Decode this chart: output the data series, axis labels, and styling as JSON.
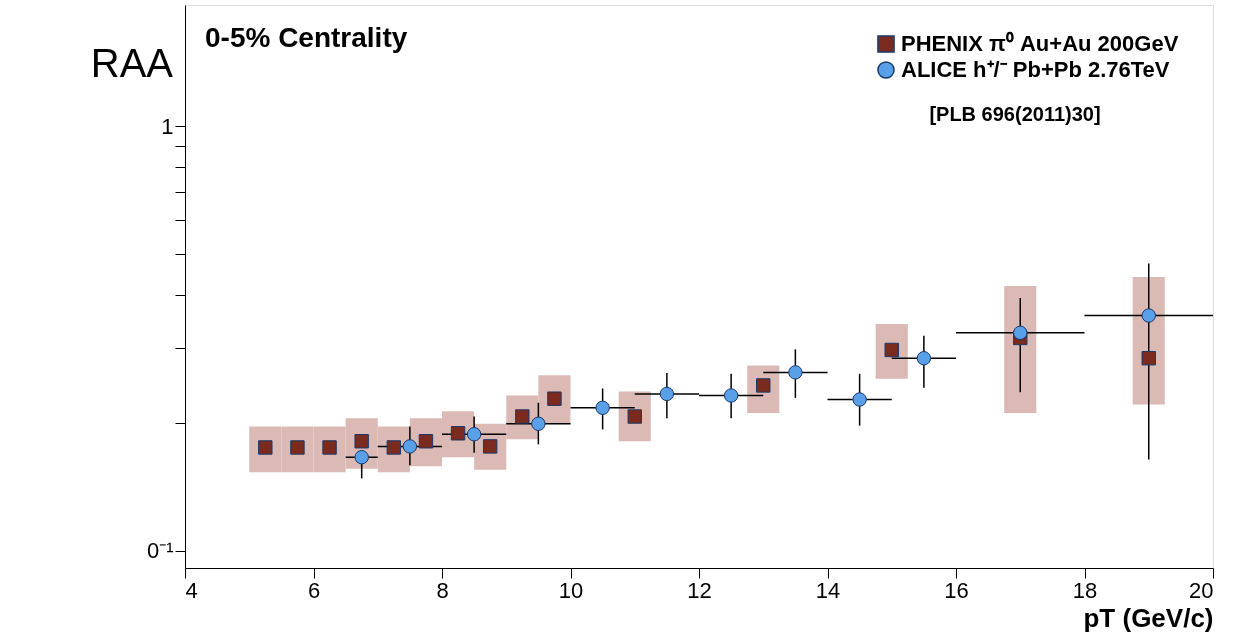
{
  "chart_data": {
    "type": "scatter",
    "title": "0-5% Centrality",
    "xlabel": "pT (GeV/c)",
    "ylabel": "RAA",
    "log": "y",
    "grid": false,
    "legend": "top right",
    "xlim": [
      4,
      20
    ],
    "xticks": [
      4,
      6,
      8,
      10,
      12,
      14,
      16,
      18,
      20
    ],
    "ylim": [
      0.091,
      1.93
    ],
    "yticks": [
      {
        "value": 0.1,
        "label": "0⁻¹"
      },
      {
        "value": 0.2,
        "label": null
      },
      {
        "value": 0.3,
        "label": null
      },
      {
        "value": 0.4,
        "label": null
      },
      {
        "value": 0.5,
        "label": null
      },
      {
        "value": 0.6,
        "label": null
      },
      {
        "value": 0.7,
        "label": null
      },
      {
        "value": 0.8,
        "label": null
      },
      {
        "value": 0.9,
        "label": null
      },
      1
    ],
    "annotations": [
      "[PLB 696(2011)30]"
    ],
    "series": [
      {
        "type": "bar",
        "color": "#dbbab5",
        "x": [
          5.25,
          5.75,
          6.25,
          6.75,
          7.25,
          7.75,
          8.25,
          8.75,
          9.25,
          9.75,
          11,
          13,
          15,
          17,
          19
        ],
        "base": [
          0.153,
          0.153,
          0.153,
          0.156,
          0.153,
          0.158,
          0.166,
          0.155,
          0.183,
          0.199,
          0.181,
          0.211,
          0.254,
          0.211,
          0.221
        ],
        "values": [
          0.043,
          0.043,
          0.043,
          0.049,
          0.043,
          0.047,
          0.047,
          0.044,
          0.049,
          0.06,
          0.056,
          0.062,
          0.088,
          0.209,
          0.22
        ]
      },
      {
        "name": "PHENIX π⁰  Au+Au 200GeV",
        "color": "#7a2a1e",
        "marker": "square",
        "x": [
          5.25,
          5.75,
          6.25,
          6.75,
          7.25,
          7.75,
          8.25,
          8.75,
          9.25,
          9.75,
          11,
          13,
          15,
          17,
          19
        ],
        "values": [
          0.175,
          0.175,
          0.175,
          0.181,
          0.175,
          0.181,
          0.189,
          0.176,
          0.207,
          0.228,
          0.207,
          0.245,
          0.297,
          0.317,
          0.284
        ]
      },
      {
        "name": "ALICE h⁺/⁻  Pb+Pb 2.76TeV",
        "color": "#5aa0e8",
        "marker": "circle",
        "x": [
          6.75,
          7.5,
          8.5,
          9.5,
          10.5,
          11.5,
          12.5,
          13.5,
          14.5,
          15.5,
          17,
          19
        ],
        "values": [
          0.166,
          0.176,
          0.188,
          0.199,
          0.217,
          0.234,
          0.232,
          0.263,
          0.227,
          0.284,
          0.326,
          0.358
        ],
        "errors": [
          [
            0.148,
            0.166
          ],
          [
            0.159,
            0.196
          ],
          [
            0.17,
            0.207
          ],
          [
            0.178,
            0.223
          ],
          [
            0.193,
            0.241
          ],
          [
            0.205,
            0.262
          ],
          [
            0.205,
            0.261
          ],
          [
            0.229,
            0.298
          ],
          [
            0.197,
            0.261
          ],
          [
            0.242,
            0.321
          ],
          [
            0.236,
            0.394
          ],
          [
            0.164,
            0.475
          ]
        ],
        "xerrors": [
          0.25,
          0.5,
          0.5,
          0.5,
          0.5,
          0.5,
          0.5,
          0.5,
          0.5,
          0.5,
          1,
          1
        ]
      }
    ]
  }
}
